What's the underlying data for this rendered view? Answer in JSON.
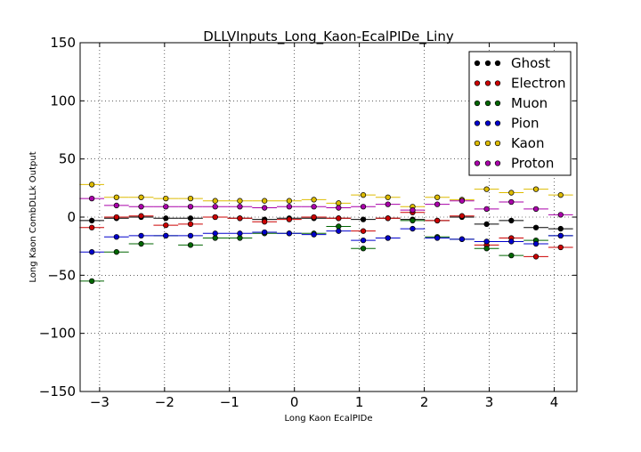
{
  "chart_data": {
    "type": "scatter",
    "title": "DLLVInputs_Long_Kaon-EcalPIDe_Liny",
    "xlabel": "Long Kaon EcalPIDe",
    "ylabel": "Long Kaon CombDLLk Output",
    "xlim": [
      -3.3,
      4.35
    ],
    "ylim": [
      -150,
      150
    ],
    "xticks": [
      -3,
      -2,
      -1,
      0,
      1,
      2,
      3,
      4
    ],
    "yticks": [
      -150,
      -100,
      -50,
      0,
      50,
      100,
      150
    ],
    "grid": true,
    "legend_position": "top-right",
    "bin_width": 0.38,
    "x": [
      -3.12,
      -2.74,
      -2.36,
      -1.98,
      -1.6,
      -1.22,
      -0.84,
      -0.46,
      -0.08,
      0.3,
      0.68,
      1.06,
      1.44,
      1.82,
      2.2,
      2.58,
      2.96,
      3.34,
      3.72,
      4.1
    ],
    "series": [
      {
        "name": "Ghost",
        "color": "#000000",
        "values": [
          -3,
          -1,
          0,
          -1,
          -1,
          0,
          -1,
          -2,
          -1,
          -1,
          -1,
          -2,
          -1,
          -2,
          -3,
          0,
          -6,
          -3,
          -9,
          -10
        ]
      },
      {
        "name": "Electron",
        "color": "#cc0000",
        "values": [
          -9,
          0,
          1,
          -7,
          -6,
          0,
          -1,
          -4,
          -2,
          0,
          -1,
          -12,
          -1,
          4,
          -3,
          1,
          -24,
          -18,
          -34,
          -26
        ]
      },
      {
        "name": "Muon",
        "color": "#006600",
        "values": [
          -55,
          -30,
          -23,
          -16,
          -24,
          -18,
          -18,
          -14,
          -14,
          -14,
          -8,
          -27,
          -18,
          -3,
          -17,
          -19,
          -27,
          -33,
          -20,
          -16
        ]
      },
      {
        "name": "Pion",
        "color": "#0000cc",
        "values": [
          -30,
          -17,
          -16,
          -16,
          -16,
          -14,
          -14,
          -13,
          -14,
          -15,
          -12,
          -20,
          -18,
          -10,
          -18,
          -19,
          -21,
          -21,
          -23,
          -16
        ]
      },
      {
        "name": "Kaon",
        "color": "#ddbb00",
        "values": [
          28,
          17,
          17,
          16,
          16,
          14,
          14,
          14,
          14,
          15,
          12,
          19,
          17,
          9,
          17,
          15,
          24,
          21,
          24,
          19
        ]
      },
      {
        "name": "Proton",
        "color": "#aa00aa",
        "values": [
          16,
          10,
          9,
          9,
          9,
          9,
          9,
          8,
          9,
          9,
          8,
          9,
          11,
          6,
          11,
          14,
          7,
          13,
          7,
          2
        ]
      }
    ]
  }
}
